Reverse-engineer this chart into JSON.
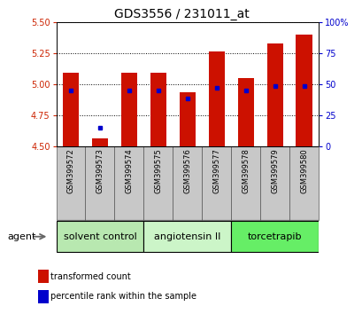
{
  "title": "GDS3556 / 231011_at",
  "samples": [
    "GSM399572",
    "GSM399573",
    "GSM399574",
    "GSM399575",
    "GSM399576",
    "GSM399577",
    "GSM399578",
    "GSM399579",
    "GSM399580"
  ],
  "bar_tops": [
    5.09,
    4.56,
    5.09,
    5.09,
    4.93,
    5.26,
    5.05,
    5.33,
    5.4
  ],
  "bar_base": 4.5,
  "blue_pct": [
    45,
    15,
    45,
    45,
    38,
    47,
    45,
    48,
    48
  ],
  "ylim_left": [
    4.5,
    5.5
  ],
  "ylim_right": [
    0,
    100
  ],
  "yticks_left": [
    4.5,
    4.75,
    5.0,
    5.25,
    5.5
  ],
  "yticks_right": [
    0,
    25,
    50,
    75,
    100
  ],
  "ytick_labels_right": [
    "0",
    "25",
    "50",
    "75",
    "100%"
  ],
  "groups": [
    {
      "label": "solvent control",
      "start": 0,
      "end": 3,
      "color": "#b8e8b0"
    },
    {
      "label": "angiotensin II",
      "start": 3,
      "end": 6,
      "color": "#ccf5c8"
    },
    {
      "label": "torcetrapib",
      "start": 6,
      "end": 9,
      "color": "#66ee66"
    }
  ],
  "bar_color": "#cc1100",
  "blue_color": "#0000cc",
  "bar_width": 0.55,
  "left_tick_color": "#cc2200",
  "right_tick_color": "#0000cc",
  "agent_label": "agent",
  "legend_items": [
    {
      "label": "transformed count",
      "color": "#cc1100"
    },
    {
      "label": "percentile rank within the sample",
      "color": "#0000cc"
    }
  ],
  "sample_box_color": "#c8c8c8",
  "title_fontsize": 10,
  "tick_fontsize": 7,
  "sample_fontsize": 6,
  "group_fontsize": 8,
  "legend_fontsize": 7
}
